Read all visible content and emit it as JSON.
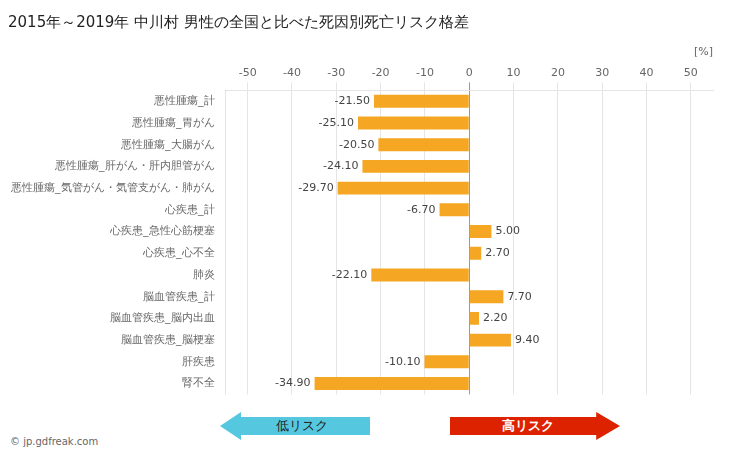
{
  "chart_data": {
    "type": "bar",
    "orientation": "horizontal",
    "title": "2015年～2019年 中川村 男性の全国と比べた死因別死亡リスク格差",
    "xlabel": "[%]",
    "categories": [
      "悪性腫瘍_計",
      "悪性腫瘍_胃がん",
      "悪性腫瘍_大腸がん",
      "悪性腫瘍_肝がん・肝内胆管がん",
      "悪性腫瘍_気管がん・気管支がん・肺がん",
      "心疾患_計",
      "心疾患_急性心筋梗塞",
      "心疾患_心不全",
      "肺炎",
      "脳血管疾患_計",
      "脳血管疾患_脳内出血",
      "脳血管疾患_脳梗塞",
      "肝疾患",
      "腎不全"
    ],
    "values": [
      -21.5,
      -25.1,
      -20.5,
      -24.1,
      -29.7,
      -6.7,
      5.0,
      2.7,
      -22.1,
      7.7,
      2.2,
      9.4,
      -10.1,
      -34.9
    ],
    "value_labels": [
      "-21.50",
      "-25.10",
      "-20.50",
      "-24.10",
      "-29.70",
      "-6.70",
      "5.00",
      "2.70",
      "-22.10",
      "7.70",
      "2.20",
      "9.40",
      "-10.10",
      "-34.90"
    ],
    "color": "#f5a623",
    "xlim": [
      -55,
      55
    ],
    "xticks": [
      -50,
      -40,
      -30,
      -20,
      -10,
      0,
      10,
      20,
      30,
      40,
      50
    ],
    "grid": true,
    "data_labels": true,
    "annotations": [
      {
        "text": "低リスク",
        "color": "#55c8e0"
      },
      {
        "text": "高リスク",
        "color": "#dd2200"
      },
      {
        "text": "© jp.gdfreak.com"
      }
    ]
  }
}
